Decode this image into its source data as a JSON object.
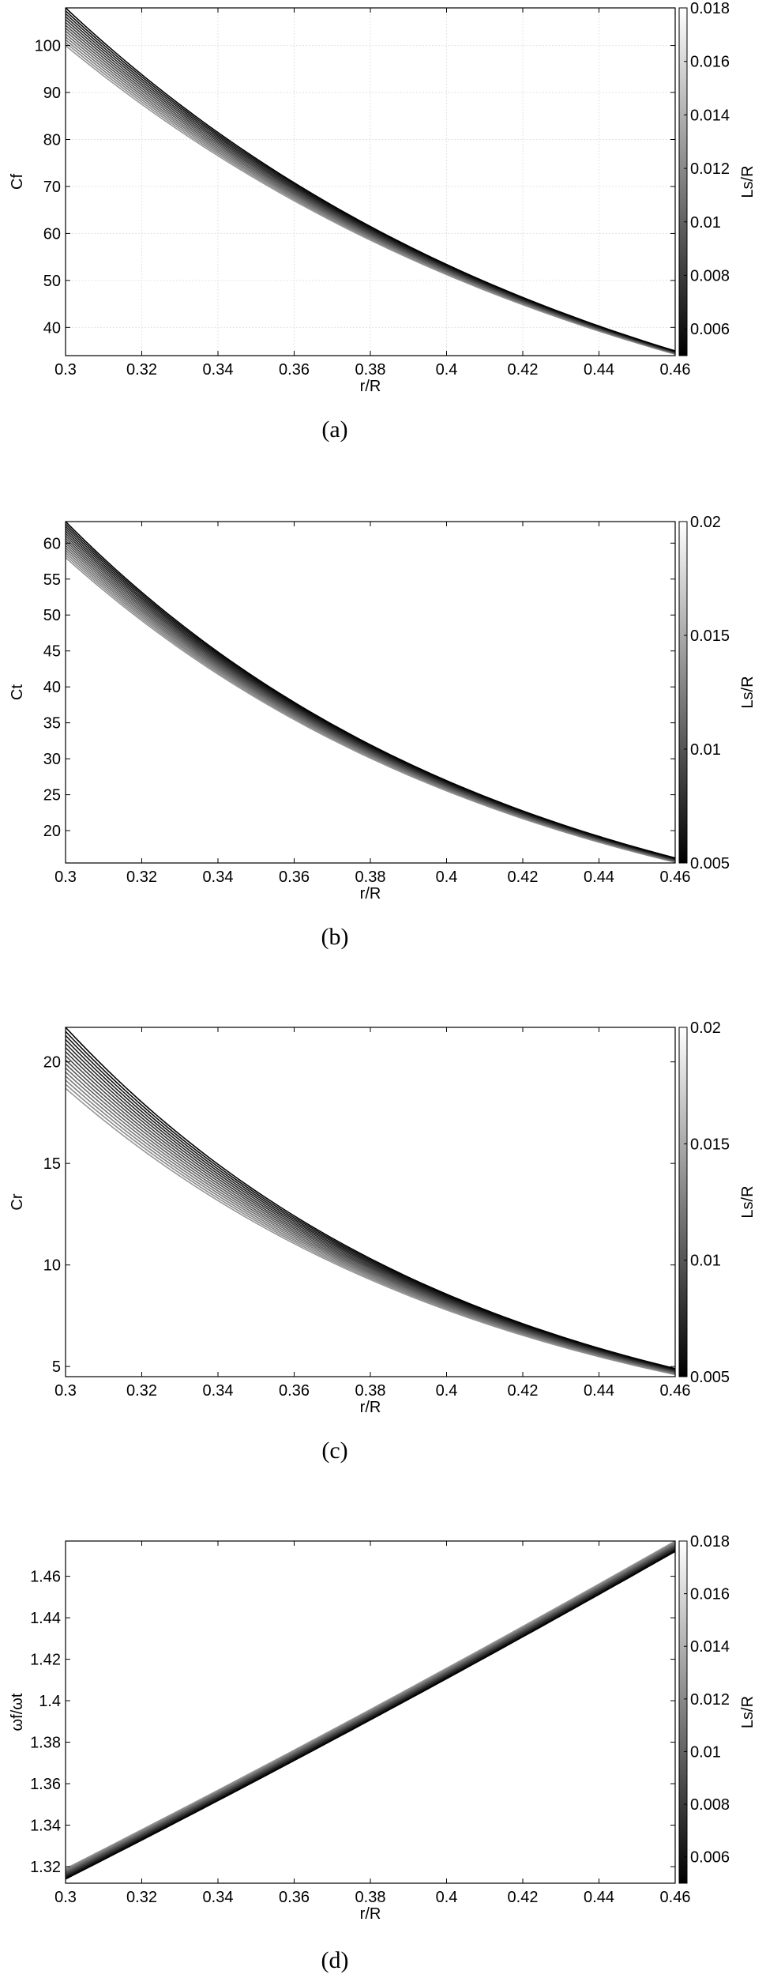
{
  "figure": {
    "captions": [
      "(a)",
      "(b)",
      "(c)",
      "(d)"
    ]
  },
  "chart_data": [
    {
      "type": "line",
      "panel": "(a)",
      "xlabel": "r/R",
      "ylabel": "Cf",
      "xlim": [
        0.3,
        0.46
      ],
      "ylim": [
        34,
        108
      ],
      "xticks": [
        "0.3",
        "0.32",
        "0.34",
        "0.36",
        "0.38",
        "0.4",
        "0.42",
        "0.44",
        "0.46"
      ],
      "yticks": [
        "40",
        "50",
        "60",
        "70",
        "80",
        "90",
        "100"
      ],
      "grid": true,
      "curve_count": 14,
      "darkest_curve_y": [
        108,
        35
      ],
      "lightest_curve_y": [
        100,
        34.3
      ],
      "colorbar": {
        "label": "Ls/R",
        "range": [
          0.005,
          0.018
        ],
        "ticks": [
          "0.006",
          "0.008",
          "0.01",
          "0.012",
          "0.014",
          "0.016",
          "0.018"
        ]
      }
    },
    {
      "type": "line",
      "panel": "(b)",
      "xlabel": "r/R",
      "ylabel": "Ct",
      "xlim": [
        0.3,
        0.46
      ],
      "ylim": [
        15.5,
        63
      ],
      "xticks": [
        "0.3",
        "0.32",
        "0.34",
        "0.36",
        "0.38",
        "0.4",
        "0.42",
        "0.44",
        "0.46"
      ],
      "yticks": [
        "20",
        "25",
        "30",
        "35",
        "40",
        "45",
        "50",
        "55",
        "60"
      ],
      "grid": false,
      "curve_count": 16,
      "darkest_curve_y": [
        63,
        16.2
      ],
      "lightest_curve_y": [
        58,
        15.6
      ],
      "colorbar": {
        "label": "Ls/R",
        "range": [
          0.005,
          0.02
        ],
        "ticks": [
          "0.005",
          "0.01",
          "0.015",
          "0.02"
        ]
      }
    },
    {
      "type": "line",
      "panel": "(c)",
      "xlabel": "r/R",
      "ylabel": "Cr",
      "xlim": [
        0.3,
        0.46
      ],
      "ylim": [
        4.5,
        21.7
      ],
      "xticks": [
        "0.3",
        "0.32",
        "0.34",
        "0.36",
        "0.38",
        "0.4",
        "0.42",
        "0.44",
        "0.46"
      ],
      "yticks": [
        "5",
        "10",
        "15",
        "20"
      ],
      "grid": false,
      "curve_count": 16,
      "darkest_curve_y": [
        21.7,
        4.9
      ],
      "lightest_curve_y": [
        18.7,
        4.6
      ],
      "colorbar": {
        "label": "Ls/R",
        "range": [
          0.005,
          0.02
        ],
        "ticks": [
          "0.005",
          "0.01",
          "0.015",
          "0.02"
        ]
      }
    },
    {
      "type": "line",
      "panel": "(d)",
      "xlabel": "r/R",
      "ylabel": "ωf/ωt",
      "xlim": [
        0.3,
        0.46
      ],
      "ylim": [
        1.312,
        1.477
      ],
      "xticks": [
        "0.3",
        "0.32",
        "0.34",
        "0.36",
        "0.38",
        "0.4",
        "0.42",
        "0.44",
        "0.46"
      ],
      "yticks": [
        "1.32",
        "1.34",
        "1.36",
        "1.38",
        "1.4",
        "1.42",
        "1.44",
        "1.46"
      ],
      "grid": false,
      "curve_count": 14,
      "darkest_curve_y": [
        1.314,
        1.472
      ],
      "lightest_curve_y": [
        1.319,
        1.477
      ],
      "colorbar": {
        "label": "Ls/R",
        "range": [
          0.005,
          0.018
        ],
        "ticks": [
          "0.006",
          "0.008",
          "0.01",
          "0.012",
          "0.014",
          "0.016",
          "0.018"
        ]
      }
    }
  ]
}
